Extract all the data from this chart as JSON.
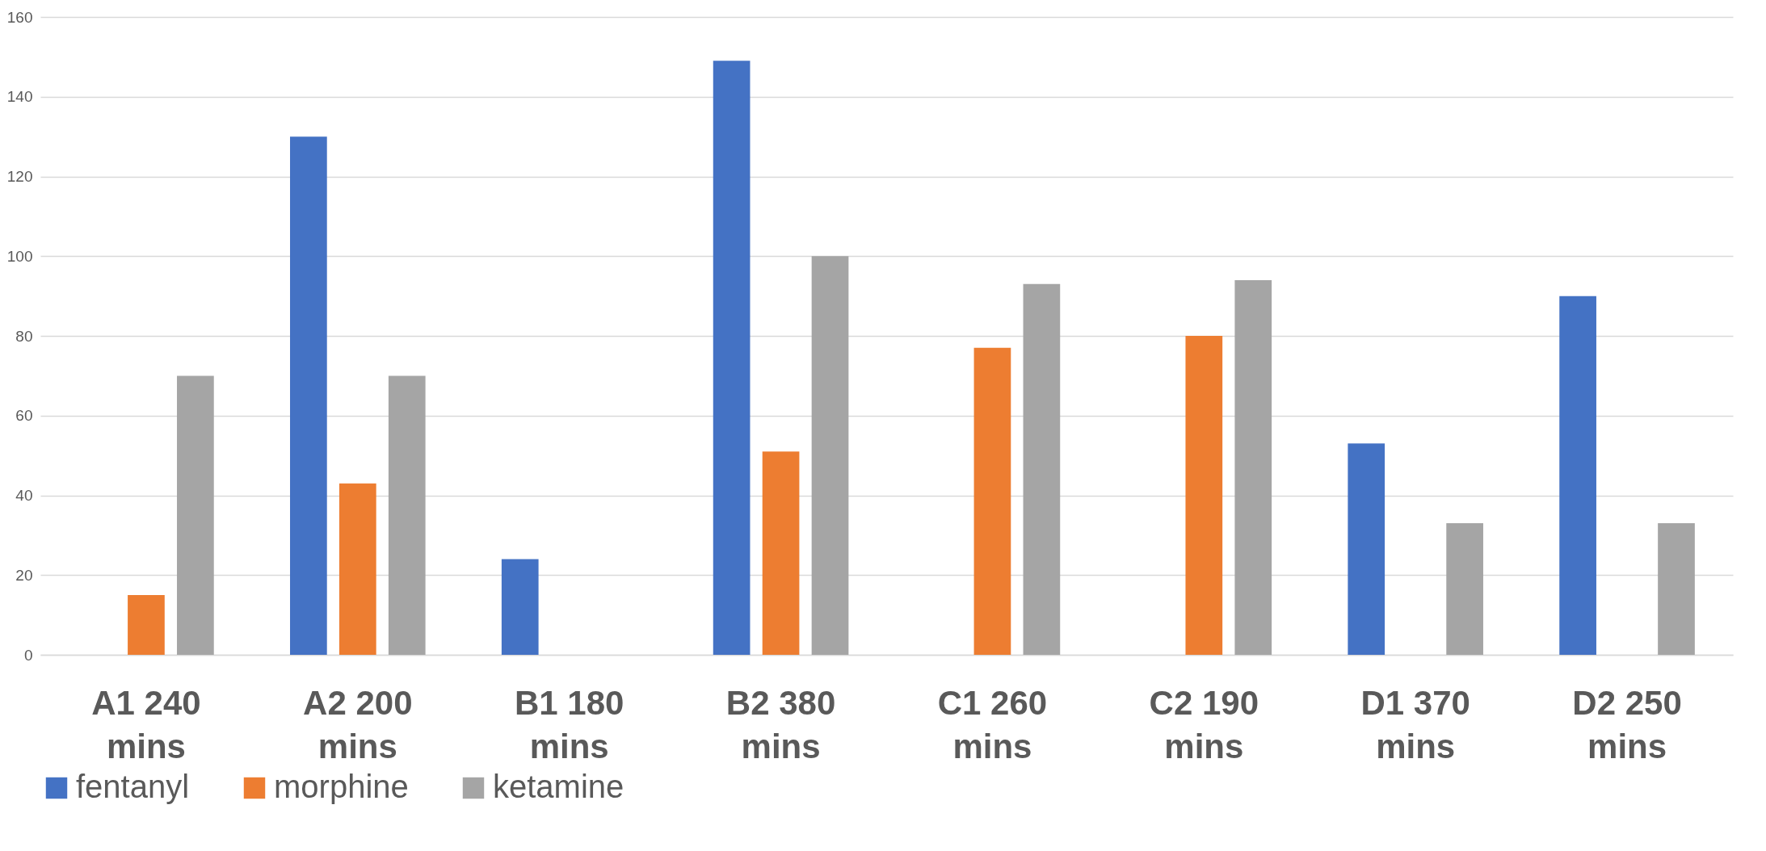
{
  "chart_data": {
    "type": "bar",
    "categories": [
      "A1 240 mins",
      "A2 200 mins",
      "B1 180 mins",
      "B2 380 mins",
      "C1 260 mins",
      "C2 190 mins",
      "D1 370 mins",
      "D2 250 mins"
    ],
    "series": [
      {
        "name": "fentanyl",
        "color": "#4472c4",
        "values": [
          null,
          130,
          24,
          149,
          null,
          null,
          53,
          90
        ]
      },
      {
        "name": "morphine",
        "color": "#ed7d31",
        "values": [
          15,
          43,
          null,
          51,
          77,
          80,
          null,
          null
        ]
      },
      {
        "name": "ketamine",
        "color": "#a5a5a5",
        "values": [
          70,
          70,
          null,
          100,
          93,
          94,
          33,
          33
        ]
      }
    ],
    "ylim": [
      0,
      160
    ],
    "yticks": [
      0,
      20,
      40,
      60,
      80,
      100,
      120,
      140,
      160
    ],
    "grid": "y",
    "legend": "bottom"
  }
}
